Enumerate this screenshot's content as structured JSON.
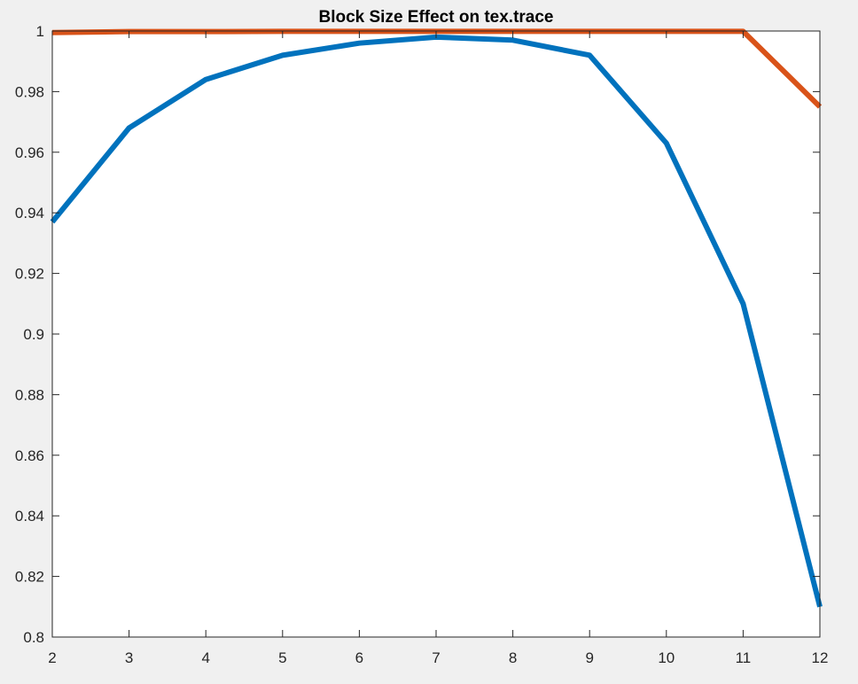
{
  "chart_data": {
    "type": "line",
    "title": "Block Size Effect on tex.trace",
    "xlabel": "",
    "ylabel": "",
    "x": [
      2,
      3,
      4,
      5,
      6,
      7,
      8,
      9,
      10,
      11,
      12
    ],
    "xlim": [
      2,
      12
    ],
    "ylim": [
      0.8,
      1.0
    ],
    "xticks": [
      2,
      3,
      4,
      5,
      6,
      7,
      8,
      9,
      10,
      11,
      12
    ],
    "xtick_labels": [
      "2",
      "3",
      "4",
      "5",
      "6",
      "7",
      "8",
      "9",
      "10",
      "11",
      "12"
    ],
    "yticks": [
      0.8,
      0.82,
      0.84,
      0.86,
      0.88,
      0.9,
      0.92,
      0.94,
      0.96,
      0.98,
      1.0
    ],
    "ytick_labels": [
      "0.8",
      "0.82",
      "0.84",
      "0.86",
      "0.88",
      "0.9",
      "0.92",
      "0.94",
      "0.96",
      "0.98",
      "1"
    ],
    "grid": false,
    "legend": "none",
    "series": [
      {
        "color": "#0072BD",
        "values": [
          0.937,
          0.968,
          0.984,
          0.992,
          0.996,
          0.998,
          0.997,
          0.992,
          0.963,
          0.91,
          0.81
        ]
      },
      {
        "color": "#D95319",
        "values": [
          0.9995,
          0.9998,
          0.9998,
          0.9999,
          0.9999,
          0.9999,
          0.9999,
          0.9999,
          0.9999,
          0.9999,
          0.975
        ]
      }
    ]
  }
}
